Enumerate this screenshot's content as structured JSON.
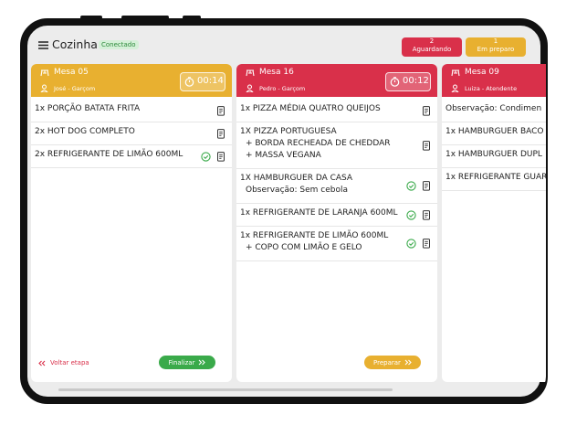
{
  "header": {
    "title": "Cozinha",
    "status": "Conectado",
    "badges": [
      {
        "count": 2,
        "label": "Aguardando",
        "color": "#d9304a"
      },
      {
        "count": 1,
        "label": "Em preparo",
        "color": "#e8b030"
      }
    ]
  },
  "orders": [
    {
      "table": "Mesa 05",
      "staff": "José - Garçom",
      "timer": "00:14",
      "color": "#e8b030",
      "items": [
        {
          "lines": [
            "1x PORÇÃO BATATA FRITA"
          ],
          "done": false,
          "icon": true
        },
        {
          "lines": [
            "2x HOT DOG COMPLETO"
          ],
          "done": false,
          "icon": true
        },
        {
          "lines": [
            "2x REFRIGERANTE DE LIMÃO 600ML"
          ],
          "done": true,
          "icon": true
        }
      ],
      "back": "Voltar etapa",
      "action": "Finalizar",
      "action_color": "#3aaa4a"
    },
    {
      "table": "Mesa 16",
      "staff": "Pedro - Garçom",
      "timer": "00:12",
      "color": "#d9304a",
      "items": [
        {
          "lines": [
            "1x PIZZA MÉDIA QUATRO QUEIJOS"
          ],
          "done": false,
          "icon": true
        },
        {
          "lines": [
            "1X PIZZA PORTUGUESA",
            "+ BORDA RECHEADA DE CHEDDAR",
            "+ MASSA VEGANA"
          ],
          "done": false,
          "icon": true
        },
        {
          "lines": [
            "1X HAMBURGUER DA CASA",
            "Observação: Sem cebola"
          ],
          "done": true,
          "icon": true
        },
        {
          "lines": [
            "1x REFRIGERANTE DE LARANJA 600ML"
          ],
          "done": true,
          "icon": true
        },
        {
          "lines": [
            "1x REFRIGERANTE DE LIMÃO 600ML",
            "+ COPO COM LIMÃO E GELO"
          ],
          "done": true,
          "icon": true
        }
      ],
      "action": "Preparar",
      "action_color": "#e8b030"
    },
    {
      "table": "Mesa 09",
      "staff": "Luiza - Atendente",
      "color": "#d9304a",
      "items": [
        {
          "lines": [
            "Observação: Condimen"
          ],
          "done": false,
          "icon": false
        },
        {
          "lines": [
            "1x HAMBURGUER BACO"
          ],
          "done": false,
          "icon": false
        },
        {
          "lines": [
            "1x HAMBURGUER DUPL"
          ],
          "done": false,
          "icon": false
        },
        {
          "lines": [
            "1x REFRIGERANTE GUAR"
          ],
          "done": false,
          "icon": false
        }
      ]
    }
  ]
}
